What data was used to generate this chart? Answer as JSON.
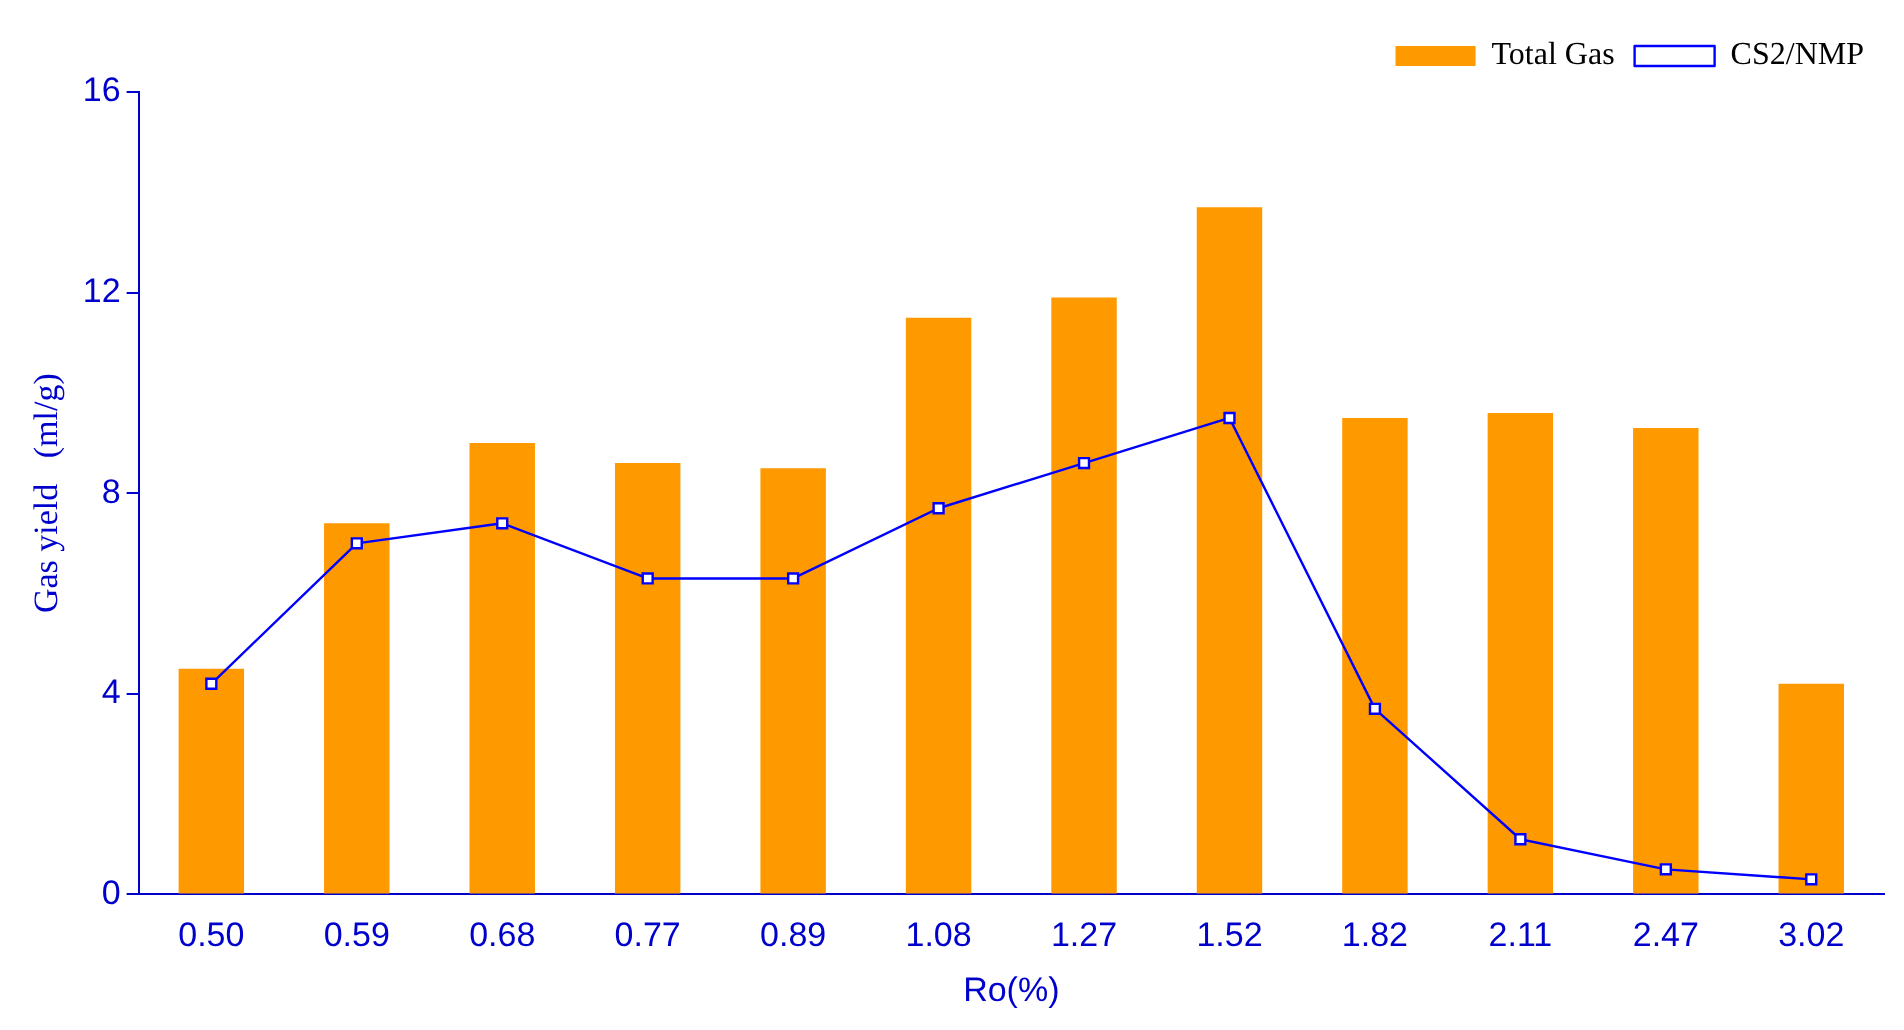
{
  "chart_data": {
    "type": "bar",
    "xlabel": "Ro(%)",
    "ylabel": "Gas yield   (ml/g)",
    "categories": [
      "0.50",
      "0.59",
      "0.68",
      "0.77",
      "0.89",
      "1.08",
      "1.27",
      "1.52",
      "1.82",
      "2.11",
      "2.47",
      "3.02"
    ],
    "series": [
      {
        "name": "Total Gas",
        "color": "#ff9900",
        "values": [
          4.5,
          7.4,
          9.0,
          8.6,
          8.5,
          11.5,
          11.9,
          13.7,
          9.5,
          9.6,
          9.3,
          4.2
        ]
      },
      {
        "name": "CS2/NMP",
        "type": "line",
        "color": "#0000ff",
        "marker": "square",
        "values": [
          4.2,
          7.0,
          7.4,
          6.3,
          6.3,
          7.7,
          8.6,
          9.5,
          3.7,
          1.1,
          0.5,
          0.3
        ]
      }
    ],
    "ylim": [
      0,
      16
    ],
    "yticks": [
      0,
      4,
      8,
      12,
      16
    ],
    "grid": false,
    "legend": "top right"
  }
}
